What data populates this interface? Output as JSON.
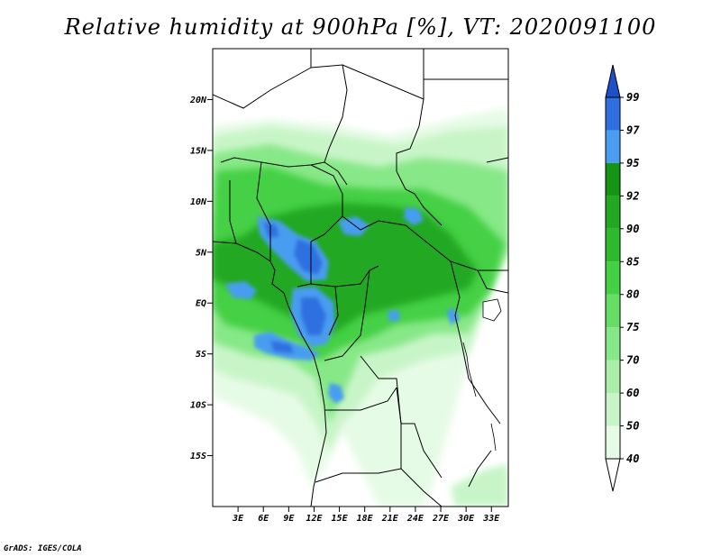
{
  "title": "Relative humidity at 900hPa [%], VT: 2020091100",
  "credit": "GrADS: IGES/COLA",
  "map": {
    "lon_range": [
      0,
      35
    ],
    "lat_range": [
      -20,
      25
    ],
    "y_ticks": [
      {
        "label": "20N",
        "lat": 20
      },
      {
        "label": "15N",
        "lat": 15
      },
      {
        "label": "10N",
        "lat": 10
      },
      {
        "label": "5N",
        "lat": 5
      },
      {
        "label": "EQ",
        "lat": 0
      },
      {
        "label": "5S",
        "lat": -5
      },
      {
        "label": "10S",
        "lat": -10
      },
      {
        "label": "15S",
        "lat": -15
      }
    ],
    "x_ticks": [
      {
        "label": "3E",
        "lon": 3
      },
      {
        "label": "6E",
        "lon": 6
      },
      {
        "label": "9E",
        "lon": 9
      },
      {
        "label": "12E",
        "lon": 12
      },
      {
        "label": "15E",
        "lon": 15
      },
      {
        "label": "18E",
        "lon": 18
      },
      {
        "label": "21E",
        "lon": 21
      },
      {
        "label": "24E",
        "lon": 24
      },
      {
        "label": "27E",
        "lon": 27
      },
      {
        "label": "30E",
        "lon": 30
      },
      {
        "label": "33E",
        "lon": 33
      }
    ]
  },
  "colorbar": {
    "levels": [
      "40",
      "50",
      "60",
      "70",
      "75",
      "80",
      "85",
      "90",
      "92",
      "95",
      "97",
      "99"
    ],
    "colors": [
      "#ffffff",
      "#e6fbe6",
      "#c8f5c8",
      "#a9efa9",
      "#87e887",
      "#66de66",
      "#44d044",
      "#2dbb2d",
      "#22a822",
      "#159515",
      "#4a9df0",
      "#2f6fe0",
      "#1c4fc8"
    ]
  },
  "humidity_zones": [
    {
      "level": "50",
      "color": "#e6fbe6",
      "area": "broad moist belt"
    },
    {
      "level": "60",
      "color": "#c8f5c8",
      "area": "broad moist belt"
    },
    {
      "level": "75",
      "color": "#87e887",
      "area": "sahel and central belt"
    },
    {
      "level": "85",
      "color": "#44d044",
      "area": "core moist zone"
    },
    {
      "level": "92",
      "color": "#22a822",
      "area": "core moist zone"
    },
    {
      "level": "97",
      "color": "#4a9df0",
      "area": "saturated patches"
    },
    {
      "level": "99",
      "color": "#2f6fe0",
      "area": "saturated patches"
    }
  ]
}
